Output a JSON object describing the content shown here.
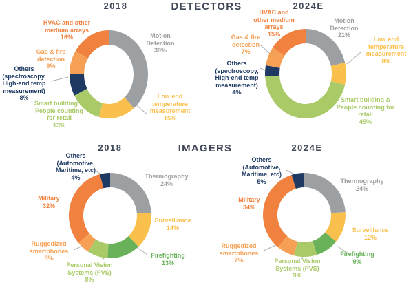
{
  "sections": {
    "detectors": {
      "title": "DETECTORS"
    },
    "imagers": {
      "title": "IMAGERS"
    }
  },
  "colors": {
    "orange": "#F0813E",
    "light_orange": "#F5A055",
    "gray": "#9DA0A3",
    "yellow": "#FAC04E",
    "light_green": "#A9CA67",
    "medium_green": "#69B259",
    "navy": "#1E3A63",
    "title_text": "#3E4757",
    "leader_line": "#AAADB0",
    "background": "#FFFFFF"
  },
  "chart_data": [
    {
      "type": "pie",
      "donut": true,
      "group": "DETECTORS",
      "title": "2018",
      "unit": "%",
      "start_angle_deg": 0,
      "direction": "clockwise",
      "slices": [
        {
          "label": "Motion Detection",
          "value": 39,
          "pct": "39%",
          "color": "#9DA0A3"
        },
        {
          "label": "Low end temperature measurement",
          "value": 15,
          "pct": "15%",
          "color": "#FAC04E"
        },
        {
          "label": "Smart building & People counting for retail",
          "value": 13,
          "pct": "13%",
          "color": "#A9CA67"
        },
        {
          "label": "Others (spectroscopy, High-end temp measurement)",
          "value": 8,
          "pct": "8%",
          "color": "#1E3A63"
        },
        {
          "label": "Gas & fire detection",
          "value": 9,
          "pct": "9%",
          "color": "#F5A055"
        },
        {
          "label": "HVAC and other medium arrays",
          "value": 16,
          "pct": "16%",
          "color": "#F0813E"
        }
      ]
    },
    {
      "type": "pie",
      "donut": true,
      "group": "DETECTORS",
      "title": "2024E",
      "unit": "%",
      "start_angle_deg": 0,
      "direction": "clockwise",
      "slices": [
        {
          "label": "Motion Detection",
          "value": 21,
          "pct": "21%",
          "color": "#9DA0A3"
        },
        {
          "label": "Low end temperature measurement",
          "value": 8,
          "pct": "8%",
          "color": "#FAC04E"
        },
        {
          "label": "Smart building & People counting for retail",
          "value": 45,
          "pct": "45%",
          "color": "#A9CA67"
        },
        {
          "label": "Others (spectroscopy, High-end temp measurement)",
          "value": 4,
          "pct": "4%",
          "color": "#1E3A63"
        },
        {
          "label": "Gas & fire detection",
          "value": 7,
          "pct": "7%",
          "color": "#F5A055"
        },
        {
          "label": "HVAC and other medium arrays",
          "value": 15,
          "pct": "15%",
          "color": "#F0813E"
        }
      ]
    },
    {
      "type": "pie",
      "donut": true,
      "group": "IMAGERS",
      "title": "2018",
      "unit": "%",
      "start_angle_deg": 0,
      "direction": "clockwise",
      "slices": [
        {
          "label": "Thermography",
          "value": 24,
          "pct": "24%",
          "color": "#9DA0A3"
        },
        {
          "label": "Surveillance",
          "value": 14,
          "pct": "14%",
          "color": "#FAC04E"
        },
        {
          "label": "Firefighting",
          "value": 13,
          "pct": "13%",
          "color": "#69B259"
        },
        {
          "label": "Personal Vision Systems (PVS)",
          "value": 8,
          "pct": "8%",
          "color": "#A9CA67"
        },
        {
          "label": "Ruggedized smartphones",
          "value": 5,
          "pct": "5%",
          "color": "#F5A055"
        },
        {
          "label": "Military",
          "value": 32,
          "pct": "32%",
          "color": "#F0813E"
        },
        {
          "label": "Others (Automotive, Maritime, etc)",
          "value": 4,
          "pct": "4%",
          "color": "#1E3A63"
        }
      ]
    },
    {
      "type": "pie",
      "donut": true,
      "group": "IMAGERS",
      "title": "2024E",
      "unit": "%",
      "start_angle_deg": 0,
      "direction": "clockwise",
      "slices": [
        {
          "label": "Thermography",
          "value": 24,
          "pct": "24%",
          "color": "#9DA0A3"
        },
        {
          "label": "Surveillance",
          "value": 12,
          "pct": "12%",
          "color": "#FAC04E"
        },
        {
          "label": "Firefighting",
          "value": 9,
          "pct": "9%",
          "color": "#69B259"
        },
        {
          "label": "Personal Vision Systems (PVS)",
          "value": 9,
          "pct": "9%",
          "color": "#A9CA67"
        },
        {
          "label": "Ruggedized smartphones",
          "value": 7,
          "pct": "7%",
          "color": "#F5A055"
        },
        {
          "label": "Military",
          "value": 34,
          "pct": "34%",
          "color": "#F0813E"
        },
        {
          "label": "Others (Automotive, Maritime, etc)",
          "value": 5,
          "pct": "5%",
          "color": "#1E3A63"
        }
      ]
    }
  ]
}
